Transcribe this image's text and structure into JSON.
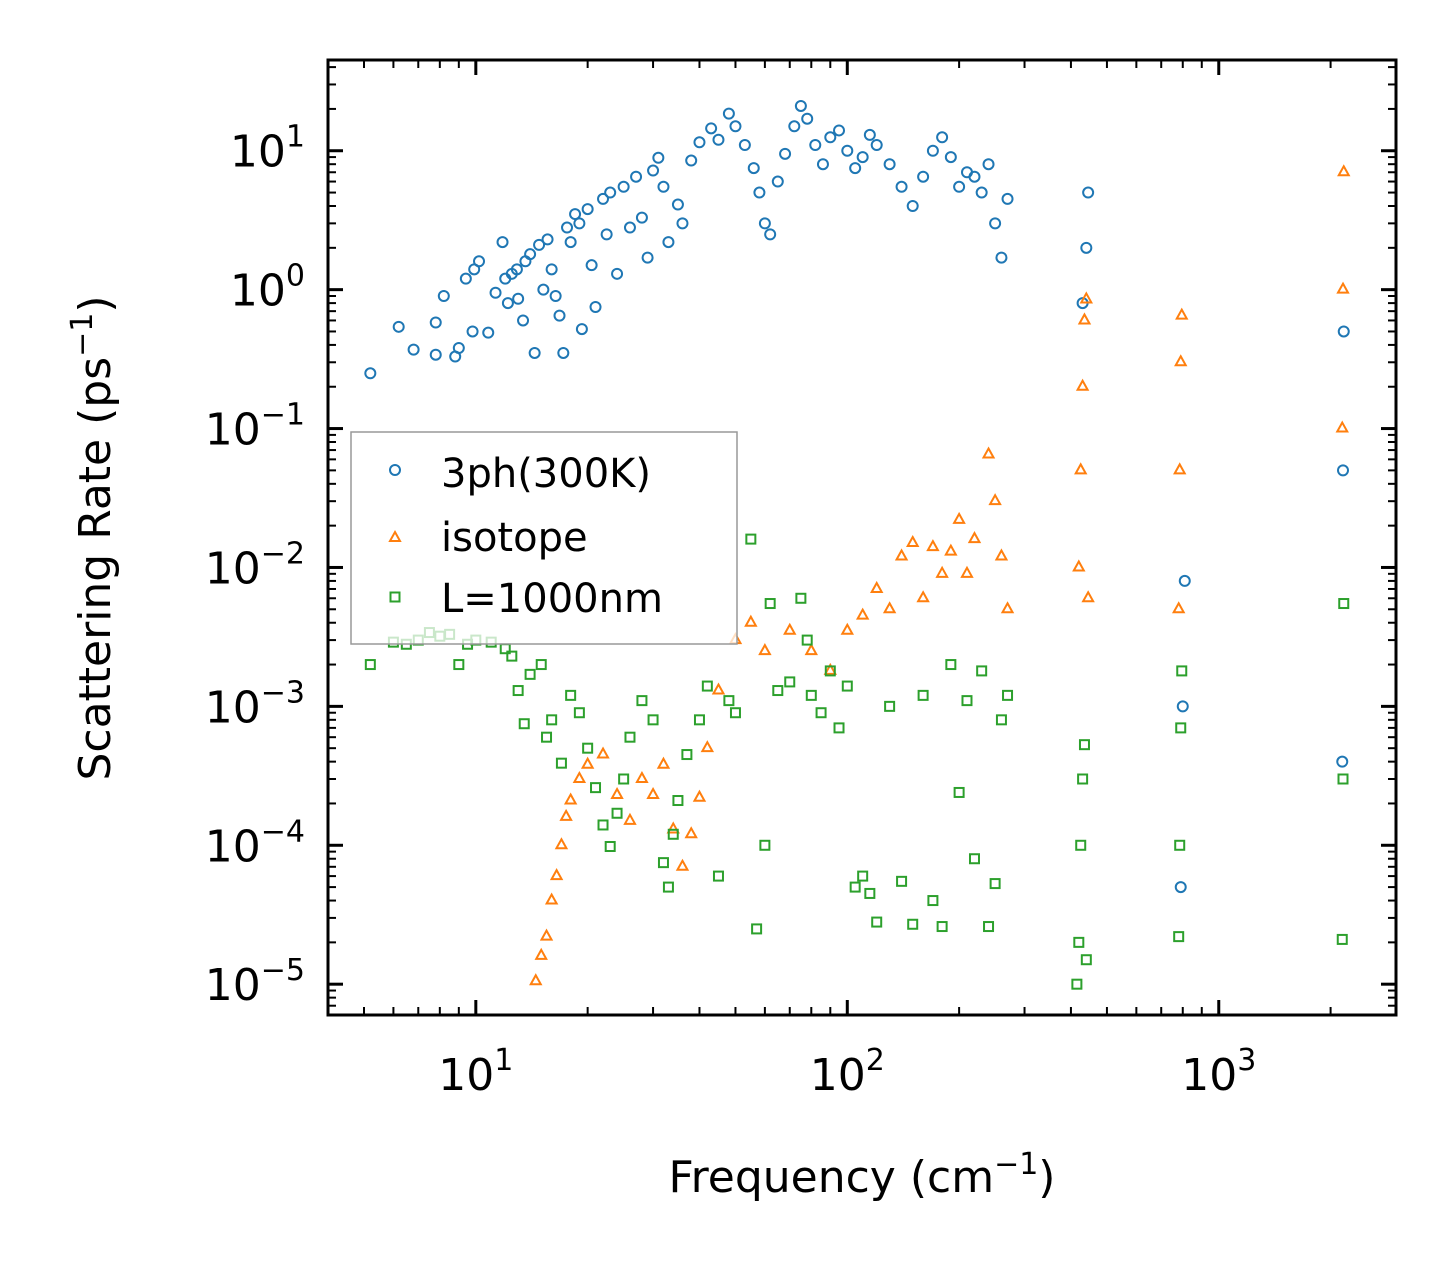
{
  "chart_data": {
    "type": "scatter",
    "title": "",
    "xlabel": "Frequency",
    "xlabel_unit": "cm",
    "xlabel_exponent": "−1",
    "ylabel": "Scattering Rate",
    "ylabel_unit": "ps",
    "ylabel_exponent": "−1",
    "xscale": "log",
    "yscale": "log",
    "xlim": [
      4,
      3000
    ],
    "ylim": [
      6e-06,
      45
    ],
    "grid": false,
    "legend_position": "center-left",
    "x_ticks": [
      {
        "value": 10,
        "base": "10",
        "exp": "1"
      },
      {
        "value": 100,
        "base": "10",
        "exp": "2"
      },
      {
        "value": 1000,
        "base": "10",
        "exp": "3"
      }
    ],
    "y_ticks": [
      {
        "value": 10,
        "base": "10",
        "exp": "1"
      },
      {
        "value": 1,
        "base": "10",
        "exp": "0"
      },
      {
        "value": 0.1,
        "base": "10",
        "exp": "−1"
      },
      {
        "value": 0.01,
        "base": "10",
        "exp": "−2"
      },
      {
        "value": 0.001,
        "base": "10",
        "exp": "−3"
      },
      {
        "value": 0.0001,
        "base": "10",
        "exp": "−4"
      },
      {
        "value": 1e-05,
        "base": "10",
        "exp": "−5"
      }
    ],
    "series": [
      {
        "name": "3ph(300K)",
        "marker": "circle",
        "color": "#1f77b4",
        "points": [
          [
            5.2,
            0.25
          ],
          [
            6.2,
            0.54
          ],
          [
            6.8,
            0.37
          ],
          [
            7.8,
            0.58
          ],
          [
            7.8,
            0.34
          ],
          [
            8.2,
            0.9
          ],
          [
            8.8,
            0.33
          ],
          [
            9.0,
            0.38
          ],
          [
            9.4,
            1.2
          ],
          [
            9.8,
            0.5
          ],
          [
            9.9,
            1.4
          ],
          [
            10.2,
            1.6
          ],
          [
            10.8,
            0.49
          ],
          [
            11.3,
            0.95
          ],
          [
            11.8,
            2.2
          ],
          [
            12.0,
            1.2
          ],
          [
            12.2,
            0.8
          ],
          [
            12.5,
            1.3
          ],
          [
            12.9,
            1.4
          ],
          [
            13.0,
            0.86
          ],
          [
            13.4,
            0.6
          ],
          [
            13.6,
            1.6
          ],
          [
            14.0,
            1.8
          ],
          [
            14.4,
            0.35
          ],
          [
            14.8,
            2.1
          ],
          [
            15.2,
            1.0
          ],
          [
            15.6,
            2.3
          ],
          [
            16.0,
            1.4
          ],
          [
            16.4,
            0.9
          ],
          [
            16.8,
            0.65
          ],
          [
            17.2,
            0.35
          ],
          [
            17.6,
            2.8
          ],
          [
            18.0,
            2.2
          ],
          [
            18.5,
            3.5
          ],
          [
            19.0,
            3.0
          ],
          [
            19.3,
            0.52
          ],
          [
            20.0,
            3.8
          ],
          [
            20.5,
            1.5
          ],
          [
            21.0,
            0.75
          ],
          [
            22.0,
            4.5
          ],
          [
            22.5,
            2.5
          ],
          [
            23.0,
            5.0
          ],
          [
            24.0,
            1.3
          ],
          [
            25.0,
            5.5
          ],
          [
            26.0,
            2.8
          ],
          [
            27.0,
            6.5
          ],
          [
            28.0,
            3.3
          ],
          [
            29.0,
            1.7
          ],
          [
            30.0,
            7.2
          ],
          [
            31.0,
            8.9
          ],
          [
            32.0,
            5.5
          ],
          [
            33.0,
            2.2
          ],
          [
            35.0,
            4.1
          ],
          [
            36.0,
            3.0
          ],
          [
            38.0,
            8.5
          ],
          [
            40.0,
            11.5
          ],
          [
            43.0,
            14.5
          ],
          [
            45.0,
            12.0
          ],
          [
            48.0,
            18.5
          ],
          [
            50.0,
            15.0
          ],
          [
            53.0,
            11.0
          ],
          [
            56.0,
            7.5
          ],
          [
            58.0,
            5.0
          ],
          [
            60.0,
            3.0
          ],
          [
            62.0,
            2.5
          ],
          [
            65.0,
            6.0
          ],
          [
            68.0,
            9.5
          ],
          [
            72.0,
            15.0
          ],
          [
            75.0,
            21.0
          ],
          [
            78.0,
            17.0
          ],
          [
            82.0,
            11.0
          ],
          [
            86.0,
            8.0
          ],
          [
            90.0,
            12.5
          ],
          [
            95.0,
            14.0
          ],
          [
            100.0,
            10.0
          ],
          [
            105.0,
            7.5
          ],
          [
            110.0,
            9.0
          ],
          [
            115.0,
            13.0
          ],
          [
            120.0,
            11.0
          ],
          [
            130.0,
            8.0
          ],
          [
            140.0,
            5.5
          ],
          [
            150.0,
            4.0
          ],
          [
            160.0,
            6.5
          ],
          [
            170.0,
            10.0
          ],
          [
            180.0,
            12.5
          ],
          [
            190.0,
            9.0
          ],
          [
            200.0,
            5.5
          ],
          [
            210.0,
            7.0
          ],
          [
            220.0,
            6.5
          ],
          [
            230.0,
            5.0
          ],
          [
            240.0,
            8.0
          ],
          [
            250.0,
            3.0
          ],
          [
            260.0,
            1.7
          ],
          [
            270.0,
            4.5
          ],
          [
            430.0,
            0.8
          ],
          [
            440.0,
            2.0
          ],
          [
            445.0,
            5.0
          ],
          [
            790.0,
            5e-05
          ],
          [
            800.0,
            0.001
          ],
          [
            810.0,
            0.008
          ],
          [
            2150.0,
            0.0004
          ],
          [
            2160.0,
            0.05
          ],
          [
            2170.0,
            0.5
          ]
        ]
      },
      {
        "name": "isotope",
        "marker": "triangle",
        "color": "#ff7f0e",
        "points": [
          [
            14.5,
            1.05e-05
          ],
          [
            15.0,
            1.6e-05
          ],
          [
            15.5,
            2.2e-05
          ],
          [
            16.0,
            4e-05
          ],
          [
            16.5,
            6e-05
          ],
          [
            17.0,
            0.0001
          ],
          [
            17.5,
            0.00016
          ],
          [
            18.0,
            0.00021
          ],
          [
            19.0,
            0.0003
          ],
          [
            20.0,
            0.00038
          ],
          [
            22.0,
            0.00045
          ],
          [
            24.0,
            0.00023
          ],
          [
            26.0,
            0.00015
          ],
          [
            28.0,
            0.0003
          ],
          [
            30.0,
            0.00023
          ],
          [
            32.0,
            0.00038
          ],
          [
            34.0,
            0.00013
          ],
          [
            36.0,
            7e-05
          ],
          [
            38.0,
            0.00012
          ],
          [
            40.0,
            0.00022
          ],
          [
            42.0,
            0.0005
          ],
          [
            45.0,
            0.0013
          ],
          [
            50.0,
            0.003
          ],
          [
            55.0,
            0.004
          ],
          [
            60.0,
            0.0025
          ],
          [
            70.0,
            0.0035
          ],
          [
            80.0,
            0.0025
          ],
          [
            90.0,
            0.0018
          ],
          [
            100.0,
            0.0035
          ],
          [
            110.0,
            0.0045
          ],
          [
            120.0,
            0.007
          ],
          [
            130.0,
            0.005
          ],
          [
            140.0,
            0.012
          ],
          [
            150.0,
            0.015
          ],
          [
            160.0,
            0.006
          ],
          [
            170.0,
            0.014
          ],
          [
            180.0,
            0.009
          ],
          [
            190.0,
            0.013
          ],
          [
            200.0,
            0.022
          ],
          [
            210.0,
            0.009
          ],
          [
            220.0,
            0.016
          ],
          [
            240.0,
            0.065
          ],
          [
            250.0,
            0.03
          ],
          [
            260.0,
            0.012
          ],
          [
            270.0,
            0.005
          ],
          [
            420.0,
            0.01
          ],
          [
            425.0,
            0.05
          ],
          [
            430.0,
            0.2
          ],
          [
            435.0,
            0.6
          ],
          [
            440.0,
            0.85
          ],
          [
            445.0,
            0.006
          ],
          [
            780.0,
            0.005
          ],
          [
            785.0,
            0.05
          ],
          [
            790.0,
            0.3
          ],
          [
            795.0,
            0.65
          ],
          [
            2150.0,
            0.1
          ],
          [
            2160.0,
            1.0
          ],
          [
            2170.0,
            7.0
          ]
        ]
      },
      {
        "name": "L=1000nm",
        "marker": "square",
        "color": "#2ca02c",
        "points": [
          [
            5.2,
            0.002
          ],
          [
            6.0,
            0.0029
          ],
          [
            6.5,
            0.0028
          ],
          [
            7.0,
            0.003
          ],
          [
            7.5,
            0.0034
          ],
          [
            8.0,
            0.0032
          ],
          [
            8.5,
            0.0033
          ],
          [
            9.0,
            0.002
          ],
          [
            9.5,
            0.0028
          ],
          [
            10.0,
            0.003
          ],
          [
            11.0,
            0.0029
          ],
          [
            12.0,
            0.0026
          ],
          [
            12.5,
            0.0023
          ],
          [
            13.0,
            0.0013
          ],
          [
            13.5,
            0.00075
          ],
          [
            14.0,
            0.0017
          ],
          [
            15.0,
            0.002
          ],
          [
            15.5,
            0.0006
          ],
          [
            16.0,
            0.0008
          ],
          [
            17.0,
            0.00039
          ],
          [
            18.0,
            0.0012
          ],
          [
            19.0,
            0.0009
          ],
          [
            20.0,
            0.0005
          ],
          [
            21.0,
            0.00026
          ],
          [
            22.0,
            0.00014
          ],
          [
            23.0,
            9.8e-05
          ],
          [
            24.0,
            0.00017
          ],
          [
            25.0,
            0.0003
          ],
          [
            26.0,
            0.0006
          ],
          [
            28.0,
            0.0011
          ],
          [
            30.0,
            0.0008
          ],
          [
            32.0,
            7.5e-05
          ],
          [
            33.0,
            5e-05
          ],
          [
            34.0,
            0.00012
          ],
          [
            35.0,
            0.00021
          ],
          [
            37.0,
            0.00045
          ],
          [
            40.0,
            0.0008
          ],
          [
            42.0,
            0.0014
          ],
          [
            45.0,
            6e-05
          ],
          [
            48.0,
            0.0011
          ],
          [
            50.0,
            0.0009
          ],
          [
            55.0,
            0.016
          ],
          [
            57.0,
            2.5e-05
          ],
          [
            60.0,
            0.0001
          ],
          [
            62.0,
            0.0055
          ],
          [
            65.0,
            0.0013
          ],
          [
            70.0,
            0.0015
          ],
          [
            75.0,
            0.006
          ],
          [
            78.0,
            0.003
          ],
          [
            80.0,
            0.0012
          ],
          [
            85.0,
            0.0009
          ],
          [
            90.0,
            0.0018
          ],
          [
            95.0,
            0.0007
          ],
          [
            100.0,
            0.0014
          ],
          [
            105.0,
            5e-05
          ],
          [
            110.0,
            6e-05
          ],
          [
            115.0,
            4.5e-05
          ],
          [
            120.0,
            2.8e-05
          ],
          [
            130.0,
            0.001
          ],
          [
            140.0,
            5.5e-05
          ],
          [
            150.0,
            2.7e-05
          ],
          [
            160.0,
            0.0012
          ],
          [
            170.0,
            4e-05
          ],
          [
            180.0,
            2.6e-05
          ],
          [
            190.0,
            0.002
          ],
          [
            200.0,
            0.00024
          ],
          [
            210.0,
            0.0011
          ],
          [
            220.0,
            8e-05
          ],
          [
            230.0,
            0.0018
          ],
          [
            240.0,
            2.6e-05
          ],
          [
            250.0,
            5.3e-05
          ],
          [
            260.0,
            0.0008
          ],
          [
            270.0,
            0.0012
          ],
          [
            415.0,
            1e-05
          ],
          [
            420.0,
            2e-05
          ],
          [
            425.0,
            0.0001
          ],
          [
            430.0,
            0.0003
          ],
          [
            435.0,
            0.00053
          ],
          [
            440.0,
            1.5e-05
          ],
          [
            780.0,
            2.2e-05
          ],
          [
            785.0,
            0.0001
          ],
          [
            790.0,
            0.0007
          ],
          [
            795.0,
            0.0018
          ],
          [
            2150.0,
            2.1e-05
          ],
          [
            2160.0,
            0.0003
          ],
          [
            2170.0,
            0.0055
          ]
        ]
      }
    ]
  }
}
